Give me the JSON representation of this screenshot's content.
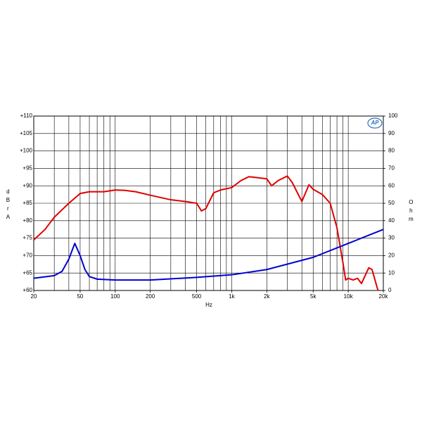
{
  "chart_data": {
    "type": "line",
    "log_x": true,
    "grid": true,
    "logo": "AP",
    "xlabel": "Hz",
    "ylabel": "dBrA",
    "y2label": "Ohm",
    "xlim": [
      20,
      20000
    ],
    "xticks": [
      20,
      50,
      100,
      200,
      500,
      {
        "value": 1000,
        "label": "1k"
      },
      {
        "value": 2000,
        "label": "2k"
      },
      {
        "value": 5000,
        "label": "5k"
      },
      {
        "value": 10000,
        "label": "10k"
      },
      {
        "value": 20000,
        "label": "20k"
      }
    ],
    "ylim": [
      60,
      110
    ],
    "yticks": [
      {
        "value": 60,
        "label": "+60"
      },
      {
        "value": 65,
        "label": "+65"
      },
      {
        "value": 70,
        "label": "+70"
      },
      {
        "value": 75,
        "label": "+75"
      },
      {
        "value": 80,
        "label": "+80"
      },
      {
        "value": 85,
        "label": "+85"
      },
      {
        "value": 90,
        "label": "+90"
      },
      {
        "value": 95,
        "label": "+95"
      },
      {
        "value": 100,
        "label": "+100"
      },
      {
        "value": 105,
        "label": "+105"
      },
      {
        "value": 110,
        "label": "+110"
      }
    ],
    "y2lim": [
      0,
      100
    ],
    "y2ticks": [
      0,
      10,
      20,
      30,
      40,
      50,
      60,
      70,
      80,
      90,
      100
    ],
    "series": [
      {
        "color": "#e00000",
        "axis": "y",
        "x": [
          20,
          25,
          30,
          40,
          50,
          60,
          80,
          100,
          120,
          150,
          200,
          300,
          400,
          500,
          550,
          600,
          700,
          800,
          1000,
          1200,
          1400,
          1600,
          2000,
          2200,
          2500,
          3000,
          3300,
          4000,
          4600,
          5000,
          6000,
          7000,
          8000,
          9000,
          9500,
          10000,
          11000,
          12000,
          13000,
          15000,
          16000,
          18000
        ],
        "values": [
          74.5,
          77.5,
          81,
          85,
          87.8,
          88.3,
          88.3,
          88.8,
          88.7,
          88.3,
          87.3,
          86,
          85.5,
          85,
          82.8,
          83.5,
          88,
          88.8,
          89.5,
          91.5,
          92.6,
          92.4,
          92,
          90,
          91.5,
          92.8,
          91,
          85.5,
          90.3,
          89,
          87.5,
          85,
          78,
          68,
          63,
          63.5,
          63,
          63.5,
          62,
          66.5,
          66,
          60
        ]
      },
      {
        "color": "#0000d0",
        "axis": "y2",
        "x": [
          20,
          30,
          35,
          40,
          45,
          50,
          55,
          60,
          70,
          100,
          200,
          500,
          1000,
          2000,
          5000,
          10000,
          20000
        ],
        "values": [
          7,
          8.5,
          11,
          18,
          27,
          20,
          12,
          8,
          6.5,
          6,
          6,
          7.5,
          9,
          12,
          19,
          27,
          35
        ]
      }
    ]
  }
}
